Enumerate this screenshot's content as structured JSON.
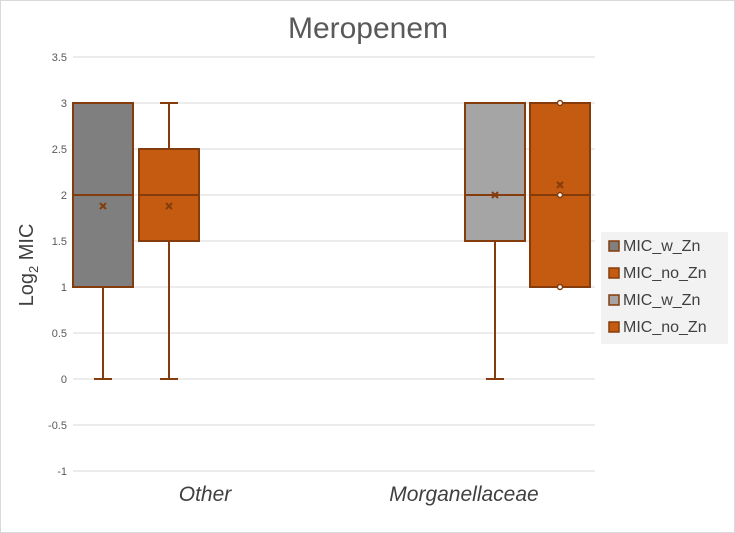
{
  "chart_data": {
    "type": "box",
    "title": "Meropenem",
    "ylabel_main": "Log",
    "ylabel_sub": "2",
    "ylabel_tail": " MIC",
    "xlabel": "",
    "ylim": [
      -1,
      3.5
    ],
    "yticks": [
      -1,
      -0.5,
      0,
      0.5,
      1,
      1.5,
      2,
      2.5,
      3,
      3.5
    ],
    "ytick_labels": [
      "-1",
      "-0.5",
      "0",
      "0.5",
      "1",
      "1.5",
      "2",
      "2.5",
      "3",
      "3.5"
    ],
    "grid": true,
    "categories": [
      "Other",
      "Morganellaceae"
    ],
    "boxes": [
      {
        "series": "MIC_w_Zn",
        "category": "Other",
        "fill": "#7f7f7f",
        "stroke": "#843c0c",
        "min": 0,
        "q1": 1,
        "median": 2,
        "q3": 3,
        "max": 3,
        "mean": 1.88,
        "outliers": []
      },
      {
        "series": "MIC_no_Zn",
        "category": "Other",
        "fill": "#c55a11",
        "stroke": "#843c0c",
        "min": 0,
        "q1": 1.5,
        "median": 2,
        "q3": 2.5,
        "max": 3,
        "mean": 1.88,
        "outliers": []
      },
      {
        "series": "MIC_w_Zn",
        "category": "Morganellaceae",
        "fill": "#a5a5a5",
        "stroke": "#843c0c",
        "min": 0,
        "q1": 1.5,
        "median": 2,
        "q3": 3,
        "max": 3,
        "mean": 2.0,
        "outliers": []
      },
      {
        "series": "MIC_no_Zn",
        "category": "Morganellaceae",
        "fill": "#c55a11",
        "stroke": "#843c0c",
        "min": 1,
        "q1": 1,
        "median": 2,
        "q3": 3,
        "max": 3,
        "mean": 2.11,
        "outliers": [
          1,
          2,
          3
        ]
      }
    ],
    "legend": [
      {
        "label": "MIC_w_Zn",
        "color": "#7f7f7f"
      },
      {
        "label": "MIC_no_Zn",
        "color": "#c55a11"
      },
      {
        "label": "MIC_w_Zn",
        "color": "#a5a5a5"
      },
      {
        "label": "MIC_no_Zn",
        "color": "#c55a11"
      }
    ],
    "legend_position": "right"
  }
}
